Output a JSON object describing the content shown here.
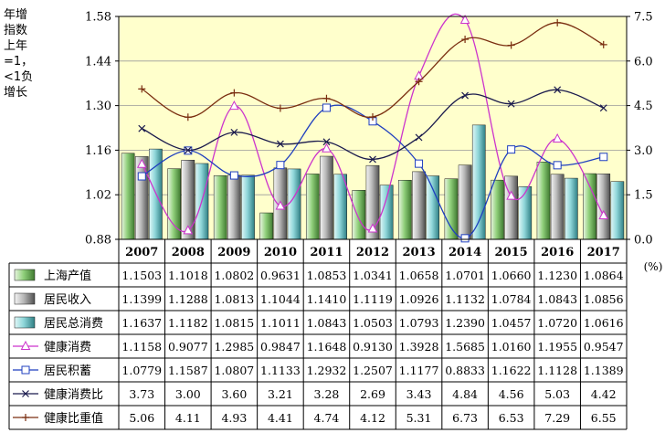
{
  "left_axis_label_lines": [
    "年增",
    "指数",
    "上年",
    "=1，",
    "<1负",
    "增长"
  ],
  "right_axis_unit": "(%)",
  "chart_data": {
    "type": "bar",
    "categories": [
      "2007",
      "2008",
      "2009",
      "2010",
      "2011",
      "2012",
      "2013",
      "2014",
      "2015",
      "2016",
      "2017"
    ],
    "left_axis": {
      "ylim": [
        0.88,
        1.58
      ],
      "ticks": [
        "0.88",
        "1.02",
        "1.16",
        "1.30",
        "1.44",
        "1.58"
      ]
    },
    "right_axis": {
      "ylim": [
        0.0,
        7.5
      ],
      "ticks": [
        "0.0",
        "1.5",
        "3.0",
        "4.5",
        "6.0",
        "7.5"
      ]
    },
    "series": [
      {
        "name": "上海产值",
        "kind": "bar",
        "axis": "left",
        "color": "#5b9a4a",
        "values": [
          1.1503,
          1.1018,
          1.0802,
          0.9631,
          1.0853,
          1.0341,
          1.0658,
          1.0701,
          1.066,
          1.123,
          1.0864
        ],
        "labels": [
          "1.1503",
          "1.1018",
          "1.0802",
          "0.9631",
          "1.0853",
          "1.0341",
          "1.0658",
          "1.0701",
          "1.0660",
          "1.1230",
          "1.0864"
        ]
      },
      {
        "name": "居民收入",
        "kind": "bar",
        "axis": "left",
        "color": "#7f7f7f",
        "values": [
          1.1399,
          1.1288,
          1.0813,
          1.1044,
          1.141,
          1.1119,
          1.0926,
          1.1132,
          1.0784,
          1.0843,
          1.0856
        ],
        "labels": [
          "1.1399",
          "1.1288",
          "1.0813",
          "1.1044",
          "1.1410",
          "1.1119",
          "1.0926",
          "1.1132",
          "1.0784",
          "1.0843",
          "1.0856"
        ]
      },
      {
        "name": "居民总消费",
        "kind": "bar",
        "axis": "left",
        "color": "#4aa3a8",
        "values": [
          1.1637,
          1.1182,
          1.0815,
          1.1011,
          1.0843,
          1.0503,
          1.0793,
          1.239,
          1.0457,
          1.072,
          1.0616
        ],
        "labels": [
          "1.1637",
          "1.1182",
          "1.0815",
          "1.1011",
          "1.0843",
          "1.0503",
          "1.0793",
          "1.2390",
          "1.0457",
          "1.0720",
          "1.0616"
        ]
      },
      {
        "name": "健康消费",
        "kind": "line",
        "axis": "left",
        "marker": "triangle",
        "color": "#cc33cc",
        "values": [
          1.1158,
          0.9077,
          1.2985,
          0.9847,
          1.1648,
          0.913,
          1.3928,
          1.5685,
          1.016,
          1.1955,
          0.9547
        ],
        "labels": [
          "1.1158",
          "0.9077",
          "1.2985",
          "0.9847",
          "1.1648",
          "0.9130",
          "1.3928",
          "1.5685",
          "1.0160",
          "1.1955",
          "0.9547"
        ]
      },
      {
        "name": "居民积蓄",
        "kind": "line",
        "axis": "left",
        "marker": "square",
        "color": "#1f3fbf",
        "values": [
          1.0779,
          1.1587,
          1.0807,
          1.1133,
          1.2932,
          1.2507,
          1.1177,
          0.8833,
          1.1622,
          1.1128,
          1.1389
        ],
        "labels": [
          "1.0779",
          "1.1587",
          "1.0807",
          "1.1133",
          "1.2932",
          "1.2507",
          "1.1177",
          "0.8833",
          "1.1622",
          "1.1128",
          "1.1389"
        ]
      },
      {
        "name": "健康消费比",
        "kind": "line",
        "axis": "right",
        "marker": "x",
        "color": "#1a1a4d",
        "values": [
          3.73,
          3.0,
          3.6,
          3.21,
          3.28,
          2.69,
          3.43,
          4.84,
          4.56,
          5.03,
          4.42
        ],
        "labels": [
          "3.73",
          "3.00",
          "3.60",
          "3.21",
          "3.28",
          "2.69",
          "3.43",
          "4.84",
          "4.56",
          "5.03",
          "4.42"
        ]
      },
      {
        "name": "健康比重值",
        "kind": "line",
        "axis": "right",
        "marker": "plus",
        "color": "#7a2e10",
        "values": [
          5.06,
          4.11,
          4.93,
          4.41,
          4.74,
          4.12,
          5.31,
          6.73,
          6.53,
          7.29,
          6.55
        ],
        "labels": [
          "5.06",
          "4.11",
          "4.93",
          "4.41",
          "4.74",
          "4.12",
          "5.31",
          "6.73",
          "6.53",
          "7.29",
          "6.55"
        ]
      }
    ],
    "plot_background": "#ffffcc",
    "grid": true,
    "legend": "data table below chart"
  }
}
